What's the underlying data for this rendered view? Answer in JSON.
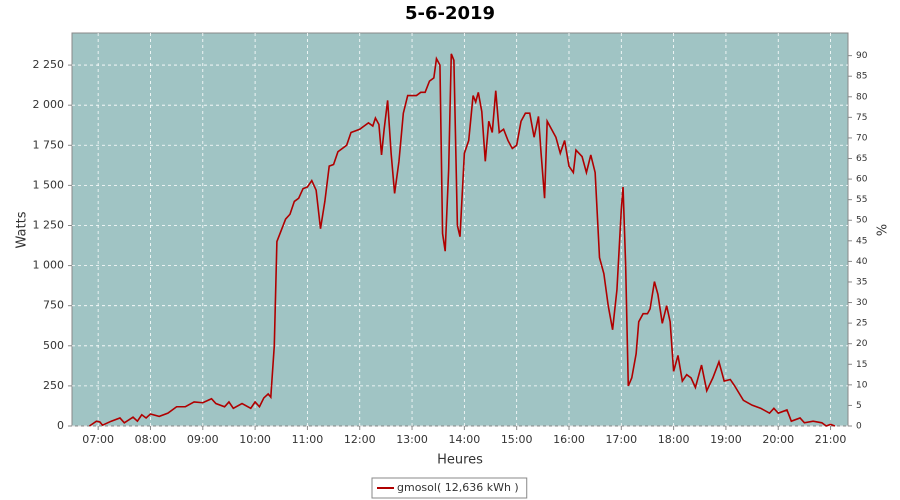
{
  "chart_data": {
    "type": "line",
    "title": "5-6-2019",
    "x_label": "Heures",
    "y_label": "Watts",
    "y2_label": "%",
    "x": [
      "06:50",
      "06:58",
      "07:02",
      "07:05",
      "07:15",
      "07:25",
      "07:30",
      "07:40",
      "07:45",
      "07:50",
      "07:55",
      "08:00",
      "08:10",
      "08:20",
      "08:30",
      "08:40",
      "08:50",
      "09:00",
      "09:10",
      "09:15",
      "09:25",
      "09:30",
      "09:35",
      "09:45",
      "09:55",
      "10:00",
      "10:05",
      "10:10",
      "10:15",
      "10:18",
      "10:22",
      "10:25",
      "10:30",
      "10:35",
      "10:40",
      "10:45",
      "10:50",
      "10:55",
      "11:00",
      "11:05",
      "11:10",
      "11:15",
      "11:20",
      "11:25",
      "11:30",
      "11:35",
      "11:45",
      "11:50",
      "12:00",
      "12:10",
      "12:15",
      "12:18",
      "12:22",
      "12:25",
      "12:28",
      "12:32",
      "12:36",
      "12:40",
      "12:45",
      "12:50",
      "12:55",
      "13:00",
      "13:05",
      "13:10",
      "13:15",
      "13:20",
      "13:25",
      "13:28",
      "13:32",
      "13:35",
      "13:38",
      "13:42",
      "13:45",
      "13:48",
      "13:52",
      "13:55",
      "14:00",
      "14:05",
      "14:10",
      "14:13",
      "14:16",
      "14:20",
      "14:24",
      "14:28",
      "14:32",
      "14:36",
      "14:40",
      "14:45",
      "14:50",
      "14:55",
      "15:00",
      "15:05",
      "15:10",
      "15:15",
      "15:20",
      "15:25",
      "15:28",
      "15:32",
      "15:35",
      "15:40",
      "15:45",
      "15:50",
      "15:55",
      "16:00",
      "16:05",
      "16:08",
      "16:15",
      "16:20",
      "16:25",
      "16:30",
      "16:35",
      "16:40",
      "16:45",
      "16:50",
      "16:55",
      "17:00",
      "17:02",
      "17:05",
      "17:08",
      "17:12",
      "17:17",
      "17:20",
      "17:25",
      "17:30",
      "17:33",
      "17:38",
      "17:42",
      "17:47",
      "17:52",
      "17:56",
      "18:00",
      "18:05",
      "18:10",
      "18:15",
      "18:20",
      "18:25",
      "18:32",
      "18:38",
      "18:45",
      "18:52",
      "18:58",
      "19:05",
      "19:10",
      "19:20",
      "19:30",
      "19:40",
      "19:50",
      "19:55",
      "20:00",
      "20:10",
      "20:15",
      "20:25",
      "20:30",
      "20:40",
      "20:50",
      "20:55",
      "21:00",
      "21:05"
    ],
    "series": [
      {
        "name": "gmosol( 12,636 kWh )",
        "color": "#b00000",
        "values": [
          0,
          30,
          25,
          5,
          30,
          50,
          20,
          55,
          30,
          70,
          50,
          75,
          60,
          80,
          120,
          120,
          150,
          145,
          170,
          140,
          120,
          150,
          110,
          140,
          110,
          150,
          120,
          175,
          200,
          180,
          500,
          1150,
          1220,
          1290,
          1320,
          1400,
          1420,
          1480,
          1490,
          1530,
          1470,
          1230,
          1400,
          1620,
          1630,
          1710,
          1750,
          1830,
          1850,
          1890,
          1870,
          1920,
          1880,
          1690,
          1850,
          2030,
          1700,
          1450,
          1650,
          1950,
          2060,
          2060,
          2060,
          2080,
          2080,
          2150,
          2170,
          2290,
          2250,
          1200,
          1090,
          1600,
          2320,
          2280,
          1250,
          1180,
          1700,
          1780,
          2060,
          2020,
          2080,
          1960,
          1650,
          1900,
          1830,
          2090,
          1830,
          1850,
          1780,
          1730,
          1750,
          1900,
          1950,
          1950,
          1800,
          1930,
          1700,
          1420,
          1900,
          1850,
          1800,
          1700,
          1780,
          1620,
          1580,
          1720,
          1680,
          1580,
          1690,
          1580,
          1050,
          950,
          750,
          600,
          850,
          1350,
          1490,
          1000,
          250,
          300,
          450,
          650,
          700,
          700,
          730,
          900,
          820,
          640,
          750,
          650,
          340,
          440,
          280,
          320,
          300,
          240,
          380,
          220,
          300,
          400,
          280,
          290,
          250,
          160,
          130,
          110,
          80,
          110,
          80,
          100,
          30,
          50,
          20,
          30,
          20,
          0,
          10,
          0
        ]
      }
    ],
    "xlim": [
      "06:30",
      "21:20"
    ],
    "xticks": [
      "07:00",
      "08:00",
      "09:00",
      "10:00",
      "11:00",
      "12:00",
      "13:00",
      "14:00",
      "15:00",
      "16:00",
      "17:00",
      "18:00",
      "19:00",
      "20:00",
      "21:00"
    ],
    "ylim": [
      0,
      2450
    ],
    "yticks": [
      0,
      250,
      500,
      750,
      {
        "value": 1000,
        "label": "1 000"
      },
      {
        "value": 1250,
        "label": "1 250"
      },
      {
        "value": 1500,
        "label": "1 500"
      },
      {
        "value": 1750,
        "label": "1 750"
      },
      {
        "value": 2000,
        "label": "2 000"
      },
      {
        "value": 2250,
        "label": "2 250"
      }
    ],
    "y2lim": [
      0,
      95.5
    ],
    "y2ticks": [
      0,
      5,
      10,
      15,
      20,
      25,
      30,
      35,
      40,
      45,
      50,
      55,
      60,
      65,
      70,
      75,
      80,
      85,
      90
    ],
    "grid": true,
    "plot_background": "#a0c4c4",
    "legend": "bottom"
  }
}
